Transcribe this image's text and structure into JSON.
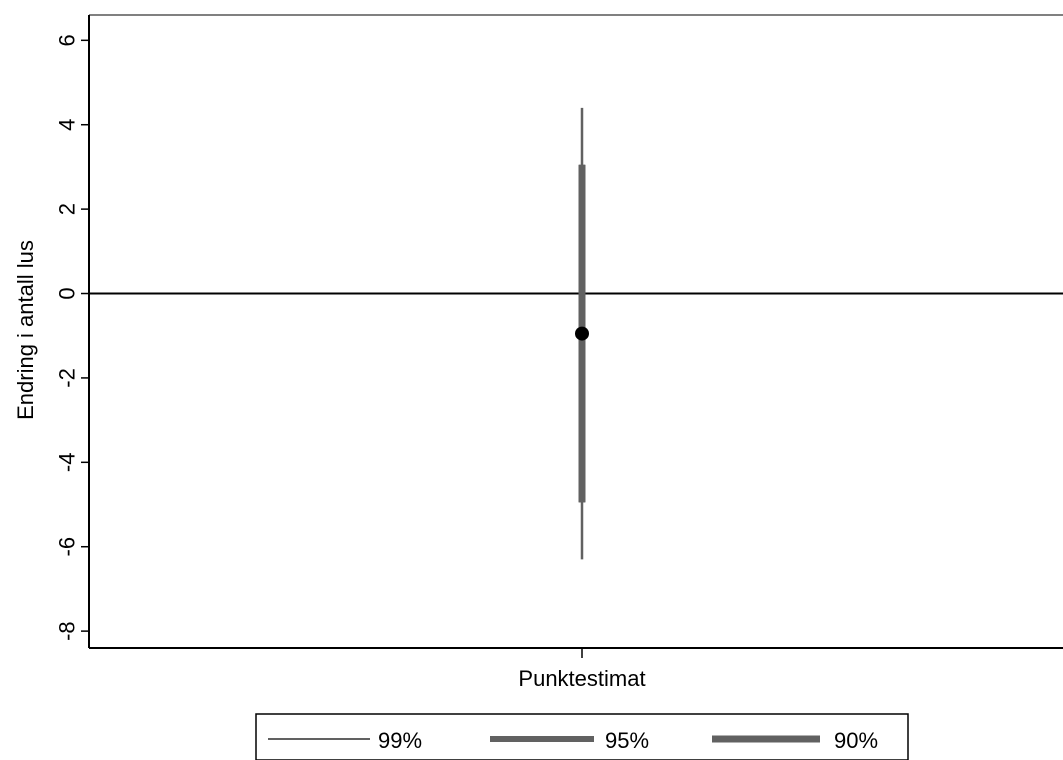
{
  "chart_data": {
    "type": "scatter",
    "title": "",
    "ylabel": "Endring i antall lus",
    "xlabel": "",
    "categories": [
      "Punktestimat"
    ],
    "ylim": [
      -8.4,
      6.6
    ],
    "yticks": [
      "6",
      "4",
      "2",
      "0",
      "-2",
      "-4",
      "-6",
      "-8"
    ],
    "ytick_values": [
      6,
      4,
      2,
      0,
      -2,
      -4,
      -6,
      -8
    ],
    "reference_line_y": 0,
    "point_estimate": -0.95,
    "intervals": [
      {
        "level": "99%",
        "low": -6.3,
        "high": 4.4
      },
      {
        "level": "95%",
        "low": -4.95,
        "high": 3.05
      },
      {
        "level": "90%",
        "low": -4.95,
        "high": 3.05
      }
    ],
    "legend": {
      "position": "bottom",
      "items": [
        {
          "label": "99%",
          "style": "thin"
        },
        {
          "label": "95%",
          "style": "thick"
        },
        {
          "label": "90%",
          "style": "thicker"
        }
      ]
    },
    "colors": {
      "interval": "#616161",
      "point": "#000000",
      "axis": "#000000"
    }
  }
}
